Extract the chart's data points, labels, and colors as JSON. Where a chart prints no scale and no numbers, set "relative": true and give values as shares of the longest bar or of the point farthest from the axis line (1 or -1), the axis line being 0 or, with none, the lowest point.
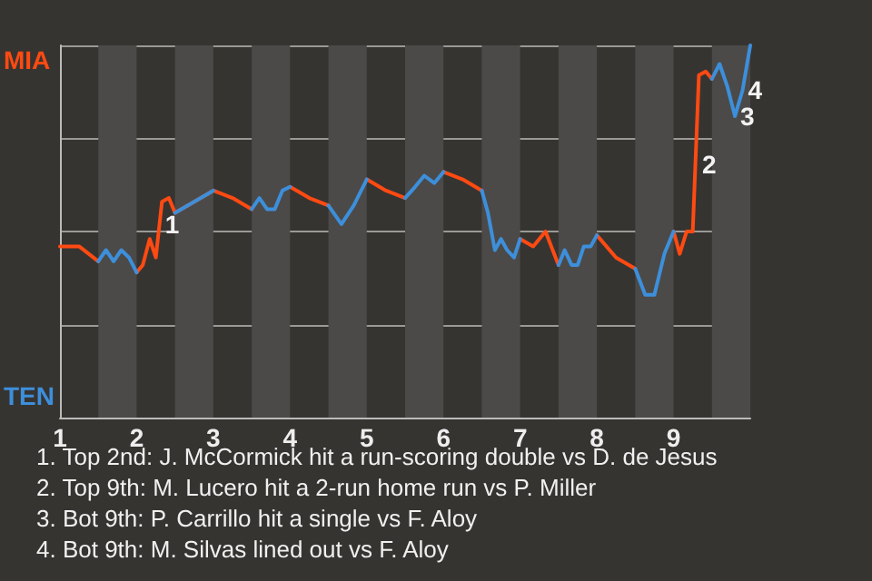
{
  "chart_data": {
    "type": "line",
    "relative": true,
    "x": [
      1,
      1.25,
      1.5,
      1.6,
      1.7,
      1.8,
      1.9,
      2,
      2.08,
      2.17,
      2.25,
      2.33,
      2.42,
      2.5,
      3,
      3.25,
      3.5,
      3.6,
      3.7,
      3.8,
      3.9,
      4,
      4.25,
      4.5,
      4.67,
      4.83,
      5,
      5.25,
      5.5,
      5.63,
      5.75,
      5.88,
      6,
      6.25,
      6.5,
      6.58,
      6.67,
      6.75,
      6.83,
      6.92,
      7,
      7.17,
      7.33,
      7.5,
      7.58,
      7.67,
      7.75,
      7.83,
      7.92,
      8,
      8.25,
      8.5,
      8.63,
      8.75,
      8.88,
      9,
      9.08,
      9.17,
      9.25,
      9.33,
      9.42,
      9.5,
      9.6,
      9.7,
      9.8,
      9.9,
      10
    ],
    "series": [
      {
        "color": "#ff4a12",
        "values": [
          0.46,
          0.46,
          0.42,
          null,
          null,
          null,
          null,
          0.39,
          0.41,
          0.48,
          0.43,
          0.58,
          0.59,
          0.55,
          0.61,
          0.59,
          0.56,
          null,
          null,
          null,
          null,
          0.62,
          0.59,
          0.57,
          null,
          null,
          0.64,
          0.61,
          0.59,
          null,
          null,
          null,
          0.66,
          0.64,
          0.61,
          null,
          null,
          null,
          null,
          null,
          0.48,
          0.46,
          0.5,
          0.41,
          null,
          null,
          null,
          null,
          null,
          0.49,
          0.43,
          0.4,
          null,
          null,
          null,
          0.5,
          0.44,
          0.5,
          0.5,
          0.92,
          0.93,
          0.91,
          null,
          null,
          null,
          null,
          null
        ]
      },
      {
        "color": "#3d8fdb",
        "values": [
          null,
          null,
          0.42,
          0.45,
          0.42,
          0.45,
          0.43,
          0.39,
          null,
          null,
          null,
          null,
          null,
          0.55,
          0.61,
          null,
          0.56,
          0.59,
          0.56,
          0.56,
          0.61,
          0.62,
          null,
          0.57,
          0.52,
          0.57,
          0.64,
          null,
          0.59,
          0.62,
          0.65,
          0.63,
          0.66,
          null,
          0.61,
          0.55,
          0.45,
          0.48,
          0.45,
          0.43,
          0.48,
          null,
          null,
          0.41,
          0.45,
          0.41,
          0.41,
          0.46,
          0.46,
          0.49,
          null,
          0.4,
          0.33,
          0.33,
          0.44,
          0.5,
          null,
          null,
          null,
          null,
          null,
          0.91,
          0.95,
          0.89,
          0.81,
          0.88,
          1
        ]
      }
    ],
    "xlim": [
      1,
      10
    ],
    "xticks": [
      1,
      2,
      3,
      4,
      5,
      6,
      7,
      8,
      9
    ],
    "grid": "y",
    "bands": [
      {
        "axis": "x",
        "from": 1.5,
        "to": 2,
        "color": "#4b4a48"
      },
      {
        "axis": "x",
        "from": 2.5,
        "to": 3,
        "color": "#4b4a48"
      },
      {
        "axis": "x",
        "from": 3.5,
        "to": 4,
        "color": "#4b4a48"
      },
      {
        "axis": "x",
        "from": 4.5,
        "to": 5,
        "color": "#4b4a48"
      },
      {
        "axis": "x",
        "from": 5.5,
        "to": 6,
        "color": "#4b4a48"
      },
      {
        "axis": "x",
        "from": 6.5,
        "to": 7,
        "color": "#4b4a48"
      },
      {
        "axis": "x",
        "from": 7.5,
        "to": 8,
        "color": "#4b4a48"
      },
      {
        "axis": "x",
        "from": 8.5,
        "to": 9,
        "color": "#4b4a48"
      },
      {
        "axis": "x",
        "from": 9.5,
        "to": 10,
        "color": "#4b4a48"
      }
    ],
    "annotations": [
      "MIA",
      "TEN",
      {
        "text": "1",
        "x": 2.3,
        "y": 0.52
      },
      {
        "text": "2",
        "x": 9.3,
        "y": 0.68
      },
      {
        "text": "3",
        "x": 9.8,
        "y": 0.81
      },
      {
        "text": "4",
        "x": 9.9,
        "y": 0.88
      },
      "1. Top 2nd: J. McCormick hit a run-scoring double vs D. de Jesus",
      "2. Top 9th: M. Lucero hit a 2-run home run vs P. Miller",
      "3. Bot 9th: P. Carrillo hit a single vs F. Aloy",
      "4. Bot 9th: M. Silvas lined out vs F. Aloy"
    ]
  }
}
